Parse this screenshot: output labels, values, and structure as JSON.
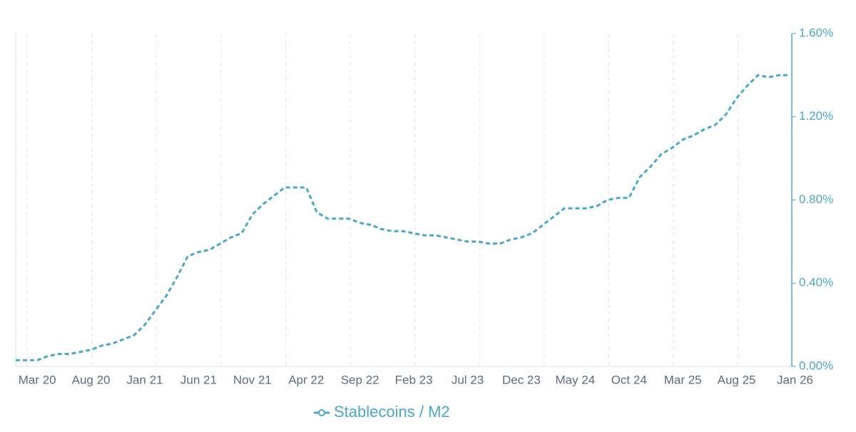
{
  "chart_data": {
    "type": "line",
    "categories": [
      null,
      null,
      "Mar 20",
      null,
      null,
      null,
      null,
      "Aug 20",
      null,
      null,
      null,
      null,
      "Jan 21",
      null,
      null,
      null,
      null,
      "Jun 21",
      null,
      null,
      null,
      null,
      "Nov 21",
      null,
      null,
      null,
      null,
      "Apr 22",
      null,
      null,
      null,
      null,
      "Sep 22",
      null,
      null,
      null,
      null,
      "Feb 23",
      null,
      null,
      null,
      null,
      "Jul 23",
      null,
      null,
      null,
      null,
      "Dec 23",
      null,
      null,
      null,
      null,
      "May 24",
      null,
      null,
      null,
      null,
      "Oct 24",
      null,
      null,
      null,
      null,
      "Mar 25",
      null,
      null,
      null,
      null,
      "Aug 25",
      null,
      null,
      null,
      null,
      "Jan 26"
    ],
    "series": [
      {
        "name": "Stablecoins / M2",
        "color": "#4aa8c8",
        "axis": "y2",
        "values": [
          0.03,
          0.03,
          0.03,
          0.05,
          0.06,
          0.06,
          0.07,
          0.08,
          0.1,
          0.11,
          0.13,
          0.15,
          0.2,
          0.27,
          0.34,
          0.43,
          0.53,
          0.55,
          0.56,
          0.59,
          0.62,
          0.64,
          0.73,
          0.78,
          0.82,
          0.86,
          0.86,
          0.86,
          0.74,
          0.71,
          0.71,
          0.71,
          0.69,
          0.68,
          0.66,
          0.65,
          0.65,
          0.64,
          0.63,
          0.63,
          0.62,
          0.61,
          0.6,
          0.6,
          0.59,
          0.59,
          0.61,
          0.62,
          0.64,
          0.68,
          0.72,
          0.76,
          0.76,
          0.76,
          0.77,
          0.8,
          0.81,
          0.81,
          0.91,
          0.96,
          1.02,
          1.05,
          1.09,
          1.11,
          1.14,
          1.16,
          1.21,
          1.29,
          1.35,
          1.4,
          1.39,
          1.4,
          1.4
        ]
      }
    ],
    "y2lim": [
      0,
      1.6
    ],
    "y2ticks": [
      {
        "value": 0,
        "label": "0.00%"
      },
      {
        "value": 0.4,
        "label": "0.40%"
      },
      {
        "value": 0.8,
        "label": "0.80%"
      },
      {
        "value": 1.2,
        "label": "1.20%"
      },
      {
        "value": 1.6,
        "label": "1.60%"
      }
    ]
  }
}
